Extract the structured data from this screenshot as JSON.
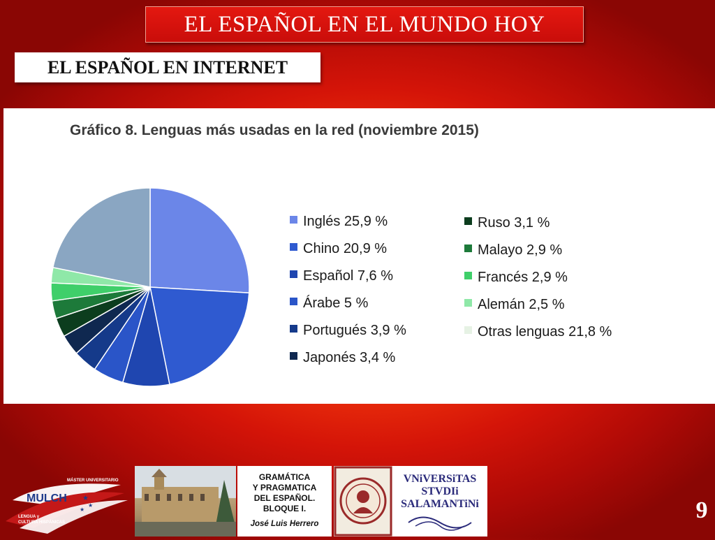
{
  "slide": {
    "title": "EL ESPAÑOL EN EL MUNDO HOY",
    "subtitle": "EL ESPAÑOL EN INTERNET",
    "page_number": "9"
  },
  "chart_data": {
    "type": "pie",
    "title": "Gráfico 8. Lenguas más usadas en la red (noviembre 2015)",
    "slices": [
      {
        "label": "Inglés 25,9 %",
        "name": "Inglés",
        "value": 25.9,
        "color": "#6b86e8"
      },
      {
        "label": "Chino 20,9 %",
        "name": "Chino",
        "value": 20.9,
        "color": "#2f5ad0"
      },
      {
        "label": "Español 7,6 %",
        "name": "Español",
        "value": 7.6,
        "color": "#1f46b0"
      },
      {
        "label": "Árabe 5 %",
        "name": "Árabe",
        "value": 5.0,
        "color": "#2a55c8"
      },
      {
        "label": "Portugués 3,9 %",
        "name": "Portugués",
        "value": 3.9,
        "color": "#153a8a"
      },
      {
        "label": "Japonés 3,4 %",
        "name": "Japonés",
        "value": 3.4,
        "color": "#0f2850"
      },
      {
        "label": "Ruso 3,1 %",
        "name": "Ruso",
        "value": 3.1,
        "color": "#0c3d1e"
      },
      {
        "label": "Malayo 2,9 %",
        "name": "Malayo",
        "value": 2.9,
        "color": "#1d7a3a"
      },
      {
        "label": "Francés 2,9 %",
        "name": "Francés",
        "value": 2.9,
        "color": "#3fcf6a"
      },
      {
        "label": "Alemán 2,5 %",
        "name": "Alemán",
        "value": 2.5,
        "color": "#8fe8a8"
      },
      {
        "label": "Otras lenguas 21,8 %",
        "name": "Otras lenguas",
        "value": 21.8,
        "color": "#8aa6c2"
      }
    ],
    "legend_placement": "right",
    "legend_other_color": "#e6f2e4"
  },
  "footer": {
    "logo_top": "MÁSTER UNIVERSITARIO",
    "logo_name": "MULCH",
    "logo_bottom_1": "LENGUA y",
    "logo_bottom_2": "CULTURA HISPÁNICAS",
    "course_lines": "GRAMÁTICA\nY PRAGMATICA\nDEL ESPAÑOL.\nBLOQUE I.",
    "author": "José Luis Herrero",
    "univ_line1": "VNiVERSiTAS",
    "univ_line2": "STVDIi",
    "univ_line3": "SALAMANTiNi"
  }
}
